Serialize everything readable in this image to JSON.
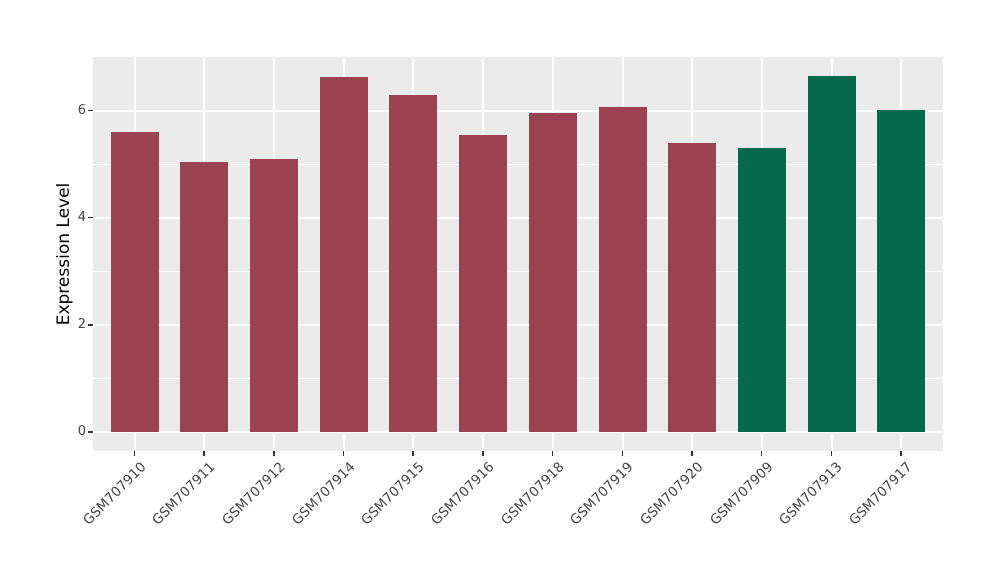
{
  "chart_data": {
    "type": "bar",
    "title": "",
    "xlabel": "",
    "ylabel": "Expression Level",
    "legend": "none",
    "grid": "on",
    "panel_bg": "#EBEBEB",
    "grid_color": "#FFFFFF",
    "tick_color": "#333333",
    "axis_text_color": "#444444",
    "ylim": [
      -0.35,
      7.0
    ],
    "yticks": [
      0,
      2,
      4,
      6
    ],
    "minor_gridlines": [
      1,
      3,
      5
    ],
    "group_colors": {
      "group1": "#9C4351",
      "group2": "#04694A"
    },
    "bars": [
      {
        "label": "GSM707910",
        "value": 5.6,
        "group": "group1"
      },
      {
        "label": "GSM707911",
        "value": 5.05,
        "group": "group1"
      },
      {
        "label": "GSM707912",
        "value": 5.09,
        "group": "group1"
      },
      {
        "label": "GSM707914",
        "value": 6.62,
        "group": "group1"
      },
      {
        "label": "GSM707915",
        "value": 6.29,
        "group": "group1"
      },
      {
        "label": "GSM707916",
        "value": 5.55,
        "group": "group1"
      },
      {
        "label": "GSM707918",
        "value": 5.95,
        "group": "group1"
      },
      {
        "label": "GSM707919",
        "value": 6.07,
        "group": "group1"
      },
      {
        "label": "GSM707920",
        "value": 5.4,
        "group": "group1"
      },
      {
        "label": "GSM707909",
        "value": 5.31,
        "group": "group2"
      },
      {
        "label": "GSM707913",
        "value": 6.64,
        "group": "group2"
      },
      {
        "label": "GSM707917",
        "value": 6.02,
        "group": "group2"
      }
    ]
  }
}
